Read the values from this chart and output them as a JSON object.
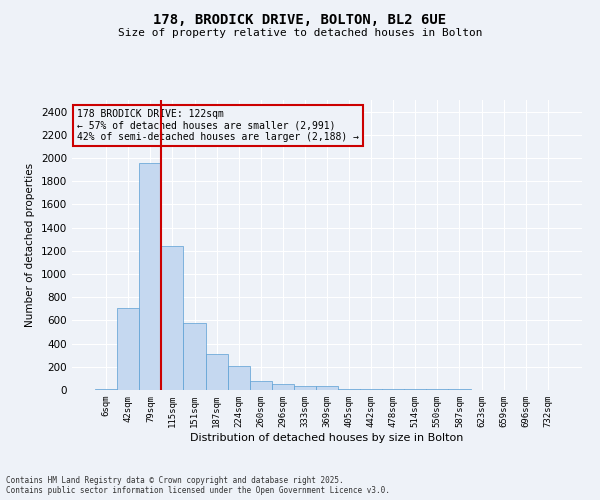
{
  "title_line1": "178, BRODICK DRIVE, BOLTON, BL2 6UE",
  "title_line2": "Size of property relative to detached houses in Bolton",
  "xlabel": "Distribution of detached houses by size in Bolton",
  "ylabel": "Number of detached properties",
  "bar_labels": [
    "6sqm",
    "42sqm",
    "79sqm",
    "115sqm",
    "151sqm",
    "187sqm",
    "224sqm",
    "260sqm",
    "296sqm",
    "333sqm",
    "369sqm",
    "405sqm",
    "442sqm",
    "478sqm",
    "514sqm",
    "550sqm",
    "587sqm",
    "623sqm",
    "659sqm",
    "696sqm",
    "732sqm"
  ],
  "bar_values": [
    10,
    710,
    1960,
    1240,
    580,
    310,
    205,
    80,
    48,
    38,
    35,
    10,
    10,
    10,
    10,
    5,
    5,
    2,
    2,
    1,
    1
  ],
  "bar_color": "#c5d8f0",
  "bar_edge_color": "#5a9fd4",
  "vline_x_index": 3,
  "vline_color": "#cc0000",
  "annotation_text": "178 BRODICK DRIVE: 122sqm\n← 57% of detached houses are smaller (2,991)\n42% of semi-detached houses are larger (2,188) →",
  "annotation_box_color": "#cc0000",
  "ylim": [
    0,
    2500
  ],
  "yticks": [
    0,
    200,
    400,
    600,
    800,
    1000,
    1200,
    1400,
    1600,
    1800,
    2000,
    2200,
    2400
  ],
  "background_color": "#eef2f8",
  "grid_color": "#ffffff",
  "footer_line1": "Contains HM Land Registry data © Crown copyright and database right 2025.",
  "footer_line2": "Contains public sector information licensed under the Open Government Licence v3.0."
}
